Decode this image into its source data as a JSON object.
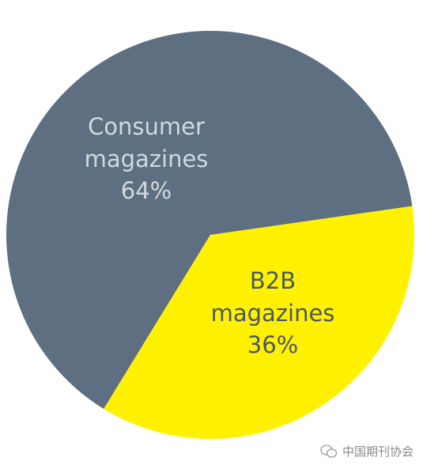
{
  "chart_data": {
    "type": "pie",
    "categories": [
      "Consumer magazines",
      "B2B magazines"
    ],
    "values": [
      64,
      36
    ],
    "value_labels": [
      "64%",
      "36%"
    ],
    "colors": [
      "#5d6f80",
      "#fff100"
    ]
  },
  "watermark": "中国期刊协会"
}
